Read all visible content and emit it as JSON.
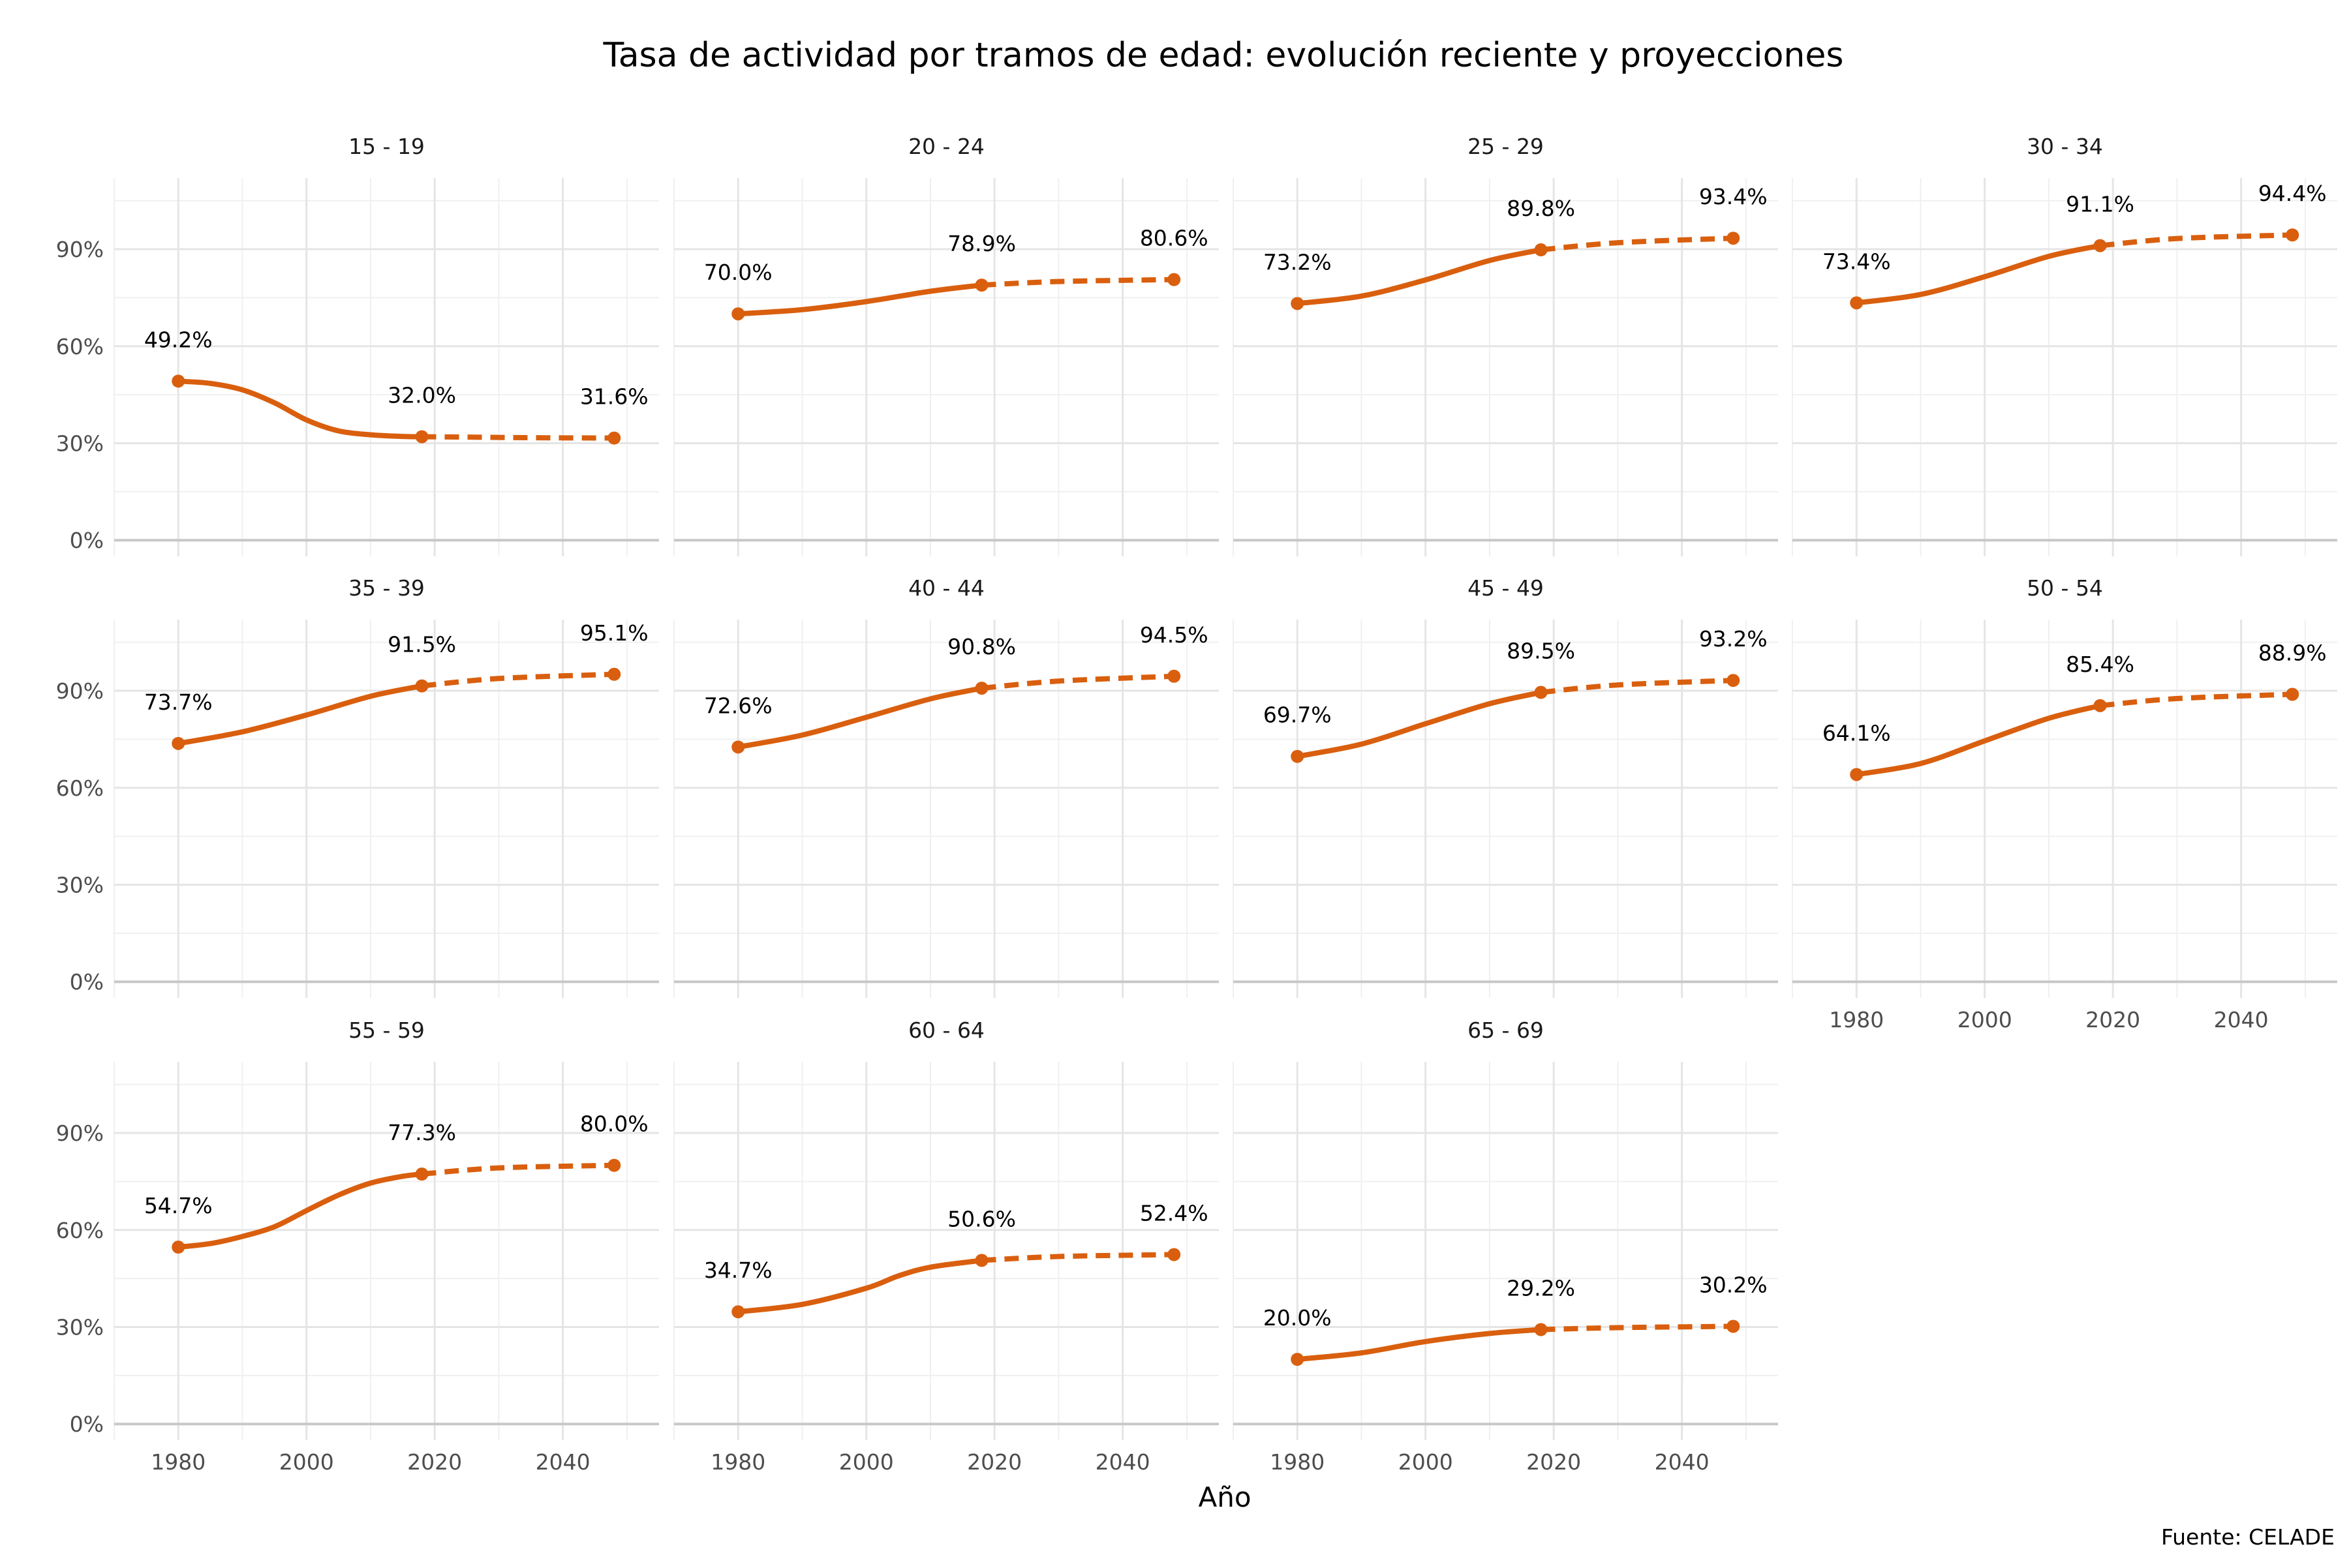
{
  "chart_data": {
    "type": "line",
    "title": "Tasa de actividad por tramos de edad: evolución reciente y proyecciones",
    "xlabel": "Año",
    "ylabel": "",
    "caption": "Fuente: CELADE",
    "xlim": [
      1970,
      2055
    ],
    "ylim": [
      -5,
      112
    ],
    "x_ticks": [
      1980,
      2000,
      2020,
      2040
    ],
    "y_ticks": [
      0,
      30,
      60,
      90
    ],
    "y_tick_labels": [
      "0%",
      "30%",
      "60%",
      "90%"
    ],
    "grid": true,
    "line_color": "#D95F0E",
    "line_style": {
      "observed": "solid",
      "projected": "dashed"
    },
    "panels": [
      {
        "name": "15 - 19",
        "observed": [
          [
            1980,
            49.2
          ],
          [
            1985,
            48.5
          ],
          [
            1990,
            46.5
          ],
          [
            1995,
            42.5
          ],
          [
            2000,
            37.2
          ],
          [
            2005,
            33.8
          ],
          [
            2010,
            32.6
          ],
          [
            2015,
            32.1
          ],
          [
            2018,
            32.0
          ]
        ],
        "projected": [
          [
            2018,
            32.0
          ],
          [
            2025,
            31.9
          ],
          [
            2035,
            31.7
          ],
          [
            2048,
            31.6
          ]
        ],
        "labels": [
          {
            "x": 1980,
            "y": 49.2,
            "text": "49.2%"
          },
          {
            "x": 2018,
            "y": 32.0,
            "text": "32.0%"
          },
          {
            "x": 2048,
            "y": 31.6,
            "text": "31.6%"
          }
        ]
      },
      {
        "name": "20 - 24",
        "observed": [
          [
            1980,
            70.0
          ],
          [
            1990,
            71.3
          ],
          [
            2000,
            73.8
          ],
          [
            2010,
            77.0
          ],
          [
            2018,
            78.9
          ]
        ],
        "projected": [
          [
            2018,
            78.9
          ],
          [
            2030,
            80.0
          ],
          [
            2048,
            80.6
          ]
        ],
        "labels": [
          {
            "x": 1980,
            "y": 70.0,
            "text": "70.0%"
          },
          {
            "x": 2018,
            "y": 78.9,
            "text": "78.9%"
          },
          {
            "x": 2048,
            "y": 80.6,
            "text": "80.6%"
          }
        ]
      },
      {
        "name": "25 - 29",
        "observed": [
          [
            1980,
            73.2
          ],
          [
            1990,
            75.5
          ],
          [
            2000,
            80.5
          ],
          [
            2010,
            86.5
          ],
          [
            2018,
            89.8
          ]
        ],
        "projected": [
          [
            2018,
            89.8
          ],
          [
            2030,
            92.0
          ],
          [
            2048,
            93.4
          ]
        ],
        "labels": [
          {
            "x": 1980,
            "y": 73.2,
            "text": "73.2%"
          },
          {
            "x": 2018,
            "y": 89.8,
            "text": "89.8%"
          },
          {
            "x": 2048,
            "y": 93.4,
            "text": "93.4%"
          }
        ]
      },
      {
        "name": "30 - 34",
        "observed": [
          [
            1980,
            73.4
          ],
          [
            1990,
            76.0
          ],
          [
            2000,
            81.5
          ],
          [
            2010,
            87.8
          ],
          [
            2018,
            91.1
          ]
        ],
        "projected": [
          [
            2018,
            91.1
          ],
          [
            2030,
            93.3
          ],
          [
            2048,
            94.4
          ]
        ],
        "labels": [
          {
            "x": 1980,
            "y": 73.4,
            "text": "73.4%"
          },
          {
            "x": 2018,
            "y": 91.1,
            "text": "91.1%"
          },
          {
            "x": 2048,
            "y": 94.4,
            "text": "94.4%"
          }
        ]
      },
      {
        "name": "35 - 39",
        "observed": [
          [
            1980,
            73.7
          ],
          [
            1990,
            77.3
          ],
          [
            2000,
            82.5
          ],
          [
            2010,
            88.3
          ],
          [
            2018,
            91.5
          ]
        ],
        "projected": [
          [
            2018,
            91.5
          ],
          [
            2030,
            93.8
          ],
          [
            2048,
            95.1
          ]
        ],
        "labels": [
          {
            "x": 1980,
            "y": 73.7,
            "text": "73.7%"
          },
          {
            "x": 2018,
            "y": 91.5,
            "text": "91.5%"
          },
          {
            "x": 2048,
            "y": 95.1,
            "text": "95.1%"
          }
        ]
      },
      {
        "name": "40 - 44",
        "observed": [
          [
            1980,
            72.6
          ],
          [
            1990,
            76.3
          ],
          [
            2000,
            81.8
          ],
          [
            2010,
            87.5
          ],
          [
            2018,
            90.8
          ]
        ],
        "projected": [
          [
            2018,
            90.8
          ],
          [
            2030,
            93.0
          ],
          [
            2048,
            94.5
          ]
        ],
        "labels": [
          {
            "x": 1980,
            "y": 72.6,
            "text": "72.6%"
          },
          {
            "x": 2018,
            "y": 90.8,
            "text": "90.8%"
          },
          {
            "x": 2048,
            "y": 94.5,
            "text": "94.5%"
          }
        ]
      },
      {
        "name": "45 - 49",
        "observed": [
          [
            1980,
            69.7
          ],
          [
            1990,
            73.5
          ],
          [
            2000,
            79.8
          ],
          [
            2010,
            86.0
          ],
          [
            2018,
            89.5
          ]
        ],
        "projected": [
          [
            2018,
            89.5
          ],
          [
            2030,
            91.8
          ],
          [
            2048,
            93.2
          ]
        ],
        "labels": [
          {
            "x": 1980,
            "y": 69.7,
            "text": "69.7%"
          },
          {
            "x": 2018,
            "y": 89.5,
            "text": "89.5%"
          },
          {
            "x": 2048,
            "y": 93.2,
            "text": "93.2%"
          }
        ]
      },
      {
        "name": "50 - 54",
        "observed": [
          [
            1980,
            64.1
          ],
          [
            1990,
            67.5
          ],
          [
            2000,
            74.5
          ],
          [
            2010,
            81.5
          ],
          [
            2018,
            85.4
          ]
        ],
        "projected": [
          [
            2018,
            85.4
          ],
          [
            2030,
            87.6
          ],
          [
            2048,
            88.9
          ]
        ],
        "labels": [
          {
            "x": 1980,
            "y": 64.1,
            "text": "64.1%"
          },
          {
            "x": 2018,
            "y": 85.4,
            "text": "85.4%"
          },
          {
            "x": 2048,
            "y": 88.9,
            "text": "88.9%"
          }
        ]
      },
      {
        "name": "55 - 59",
        "observed": [
          [
            1980,
            54.7
          ],
          [
            1985,
            55.8
          ],
          [
            1990,
            58.0
          ],
          [
            1995,
            61.0
          ],
          [
            2000,
            66.0
          ],
          [
            2005,
            70.8
          ],
          [
            2010,
            74.5
          ],
          [
            2015,
            76.6
          ],
          [
            2018,
            77.3
          ]
        ],
        "projected": [
          [
            2018,
            77.3
          ],
          [
            2030,
            79.2
          ],
          [
            2048,
            80.0
          ]
        ],
        "labels": [
          {
            "x": 1980,
            "y": 54.7,
            "text": "54.7%"
          },
          {
            "x": 2018,
            "y": 77.3,
            "text": "77.3%"
          },
          {
            "x": 2048,
            "y": 80.0,
            "text": "80.0%"
          }
        ]
      },
      {
        "name": "60 - 64",
        "observed": [
          [
            1980,
            34.7
          ],
          [
            1990,
            37.0
          ],
          [
            2000,
            42.0
          ],
          [
            2005,
            45.8
          ],
          [
            2010,
            48.5
          ],
          [
            2018,
            50.6
          ]
        ],
        "projected": [
          [
            2018,
            50.6
          ],
          [
            2030,
            51.8
          ],
          [
            2048,
            52.4
          ]
        ],
        "labels": [
          {
            "x": 1980,
            "y": 34.7,
            "text": "34.7%"
          },
          {
            "x": 2018,
            "y": 50.6,
            "text": "50.6%"
          },
          {
            "x": 2048,
            "y": 52.4,
            "text": "52.4%"
          }
        ]
      },
      {
        "name": "65 - 69",
        "observed": [
          [
            1980,
            20.0
          ],
          [
            1990,
            22.0
          ],
          [
            2000,
            25.5
          ],
          [
            2010,
            28.0
          ],
          [
            2018,
            29.2
          ]
        ],
        "projected": [
          [
            2018,
            29.2
          ],
          [
            2030,
            29.8
          ],
          [
            2048,
            30.2
          ]
        ],
        "labels": [
          {
            "x": 1980,
            "y": 20.0,
            "text": "20.0%"
          },
          {
            "x": 2018,
            "y": 29.2,
            "text": "29.2%"
          },
          {
            "x": 2048,
            "y": 30.2,
            "text": "30.2%"
          }
        ]
      }
    ]
  }
}
